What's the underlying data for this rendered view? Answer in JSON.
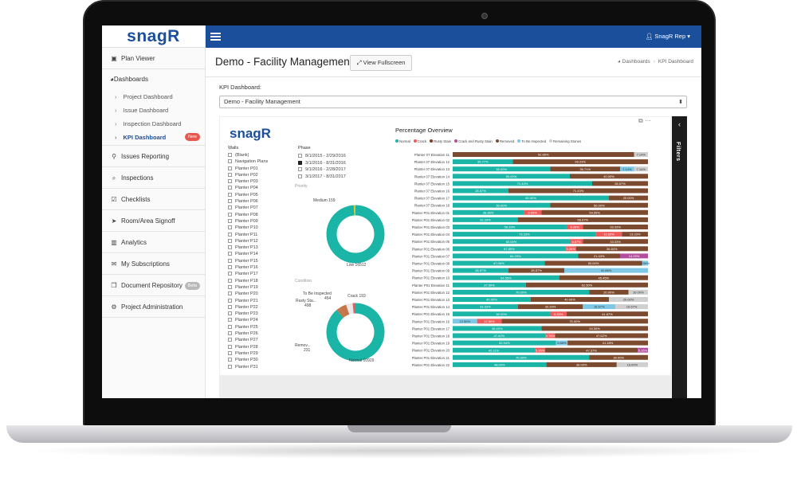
{
  "sidebar": {
    "logo": "snagR",
    "items": [
      {
        "label": "Plan Viewer",
        "icon": "image-icon"
      },
      {
        "label": "Issues Reporting",
        "icon": "map-marker-icon"
      },
      {
        "label": "Inspections",
        "icon": "search-icon"
      },
      {
        "label": "Checklists",
        "icon": "check-square-icon"
      },
      {
        "label": "Room/Area Signoff",
        "icon": "location-arrow-icon"
      },
      {
        "label": "Analytics",
        "icon": "bar-chart-icon"
      },
      {
        "label": "My Subscriptions",
        "icon": "envelope-icon"
      },
      {
        "label": "Document Repository",
        "icon": "copy-icon",
        "badge": "Beta"
      },
      {
        "label": "Project Administration",
        "icon": "cogs-icon"
      }
    ],
    "dashboards": {
      "label": "Dashboards",
      "items": [
        {
          "label": "Project Dashboard"
        },
        {
          "label": "Issue Dashboard"
        },
        {
          "label": "Inspection Dashboard"
        },
        {
          "label": "KPI Dashboard",
          "badge": "New"
        }
      ]
    }
  },
  "topbar": {
    "user": "SnagR Rep"
  },
  "header": {
    "title": "Demo - Facility Management",
    "fullscreen_label": "View Fullscreen",
    "breadcrumb": [
      "Dashboards",
      "KPI Dashboard"
    ]
  },
  "kpi": {
    "label": "KPI Dashboard:",
    "selected": "Demo - Facility Management"
  },
  "filters_label": "Filters",
  "report": {
    "logo": "snagR",
    "walls_heading": "Walls",
    "walls": [
      "(Blank)",
      "Navigation Plans",
      "Planter P01",
      "Planter P02",
      "Planter P03",
      "Planter P04",
      "Planter P05",
      "Planter P06",
      "Planter P07",
      "Planter P08",
      "Planter P09",
      "Planter P10",
      "Planter P11",
      "Planter P12",
      "Planter P13",
      "Planter P14",
      "Planter P15",
      "Planter P16",
      "Planter P17",
      "Planter P18",
      "Planter P19",
      "Planter P20",
      "Planter P21",
      "Planter P22",
      "Planter P23",
      "Planter P24",
      "Planter P25",
      "Planter P26",
      "Planter P27",
      "Planter P28",
      "Planter P29",
      "Planter P30",
      "Planter P31"
    ],
    "phase_heading": "Phase",
    "phases": [
      {
        "label": "8/1/2015 - 2/29/2016",
        "checked": false
      },
      {
        "label": "3/1/2016 - 8/31/2016",
        "checked": true
      },
      {
        "label": "9/1/2016 - 2/28/2017",
        "checked": false
      },
      {
        "label": "3/1/2017 - 8/31/2017",
        "checked": false
      }
    ],
    "priority_heading": "Priority",
    "priority_labels": {
      "medium": "Medium 159",
      "low": "Low 16512"
    },
    "condition_heading": "Condition",
    "condition_labels": {
      "tbi": "To Be Inspected",
      "tbi_val": "454",
      "crack": "Crack 193",
      "rusty": "Rusty Sta...",
      "rusty_val": "498",
      "removed": "Remov...",
      "removed_val": "231",
      "normal": "Normal 10929"
    }
  },
  "colors": {
    "brand": "#1b4f9c",
    "normal": "#1ab5a6",
    "crack": "#ef5a5a",
    "rusty": "#7a3b1f",
    "crack_rusty": "#b24e9e",
    "removed": "#7c4a2e",
    "tbi": "#7ec8e6",
    "remaining": "#cfcfcf",
    "medium": "#e5c31a",
    "cond_removed": "#c6764a"
  },
  "chart_data": {
    "type": "bar",
    "title": "Percentage Overview",
    "legend": [
      "Normal",
      "Crack",
      "Rusty Stain",
      "Crack and Rusty Stain",
      "Removed",
      "To Be Inspected",
      "Remaining Stones"
    ],
    "categories": [
      "Planter 07 Elevation 11",
      "Planter 07 Elevation 12",
      "Planter 07 Elevation 13",
      "Planter 07 Elevation 14",
      "Planter 07 Elevation 15",
      "Planter 07 Elevation 16",
      "Planter 07 Elevation 17",
      "Planter 07 Elevation 18",
      "Planter P01 Elevation 01",
      "Planter P01 Elevation 02",
      "Planter P01 Elevation 03",
      "Planter P01 Elevation 04",
      "Planter P01 Elevation 05",
      "Planter P01 Elevation 06",
      "Planter P01 Elevation 07",
      "Planter P01 Elevation 08",
      "Planter P01 Elevation 09",
      "Planter P01 Elevation 10",
      "Planter P01 Elevation 11",
      "Planter P01 Elevation 12",
      "Planter P01 Elevation 13",
      "Planter P01 Elevation 14",
      "Planter P01 Elevation 15",
      "Planter P01 Elevation 16",
      "Planter P01 Elevation 17",
      "Planter P01 Elevation 18",
      "Planter P01 Elevation 19",
      "Planter P01 Elevation 20",
      "Planter P01 Elevation 21",
      "Planter P01 Elevation 22"
    ],
    "rows": [
      [
        {
          "s": "removed",
          "v": 92.86,
          "t": "92.86%"
        },
        {
          "s": "remaining",
          "v": 7.14,
          "t": "7.14%"
        }
      ],
      [
        {
          "s": "normal",
          "v": 30.77,
          "t": "30.77%"
        },
        {
          "s": "removed",
          "v": 69.23,
          "t": "69.23%"
        }
      ],
      [
        {
          "s": "normal",
          "v": 50.0,
          "t": "50.00%"
        },
        {
          "s": "removed",
          "v": 35.71,
          "t": "35.71%"
        },
        {
          "s": "tbi",
          "v": 7.14,
          "t": "7.14%"
        },
        {
          "s": "remaining",
          "v": 7.14,
          "t": "7.14%"
        }
      ],
      [
        {
          "s": "normal",
          "v": 60.0,
          "t": "60.00%"
        },
        {
          "s": "removed",
          "v": 40.0,
          "t": "40.00%"
        }
      ],
      [
        {
          "s": "normal",
          "v": 71.43,
          "t": "71.43%"
        },
        {
          "s": "removed",
          "v": 28.57,
          "t": "28.57%"
        }
      ],
      [
        {
          "s": "normal",
          "v": 28.57,
          "t": "28.57%"
        },
        {
          "s": "removed",
          "v": 71.43,
          "t": "71.43%"
        }
      ],
      [
        {
          "s": "normal",
          "v": 80.0,
          "t": "80.00%"
        },
        {
          "s": "removed",
          "v": 20.0,
          "t": "20.00%"
        }
      ],
      [
        {
          "s": "normal",
          "v": 50.0,
          "t": "50.00%"
        },
        {
          "s": "removed",
          "v": 50.0,
          "t": "50.00%"
        }
      ],
      [
        {
          "s": "normal",
          "v": 36.36,
          "t": "36.36%"
        },
        {
          "s": "crack",
          "v": 9.09,
          "t": "9.09%"
        },
        {
          "s": "removed",
          "v": 54.55,
          "t": "54.55%"
        }
      ],
      [
        {
          "s": "normal",
          "v": 33.33,
          "t": "33.33%"
        },
        {
          "s": "removed",
          "v": 66.67,
          "t": "66.67%"
        }
      ],
      [
        {
          "s": "normal",
          "v": 58.33,
          "t": "58.33%"
        },
        {
          "s": "crack",
          "v": 8.33,
          "t": "8.33%"
        },
        {
          "s": "removed",
          "v": 33.33,
          "t": "33.33%"
        }
      ],
      [
        {
          "s": "normal",
          "v": 73.33,
          "t": "73.33%"
        },
        {
          "s": "crack",
          "v": 13.33,
          "t": "13.33%"
        },
        {
          "s": "removed",
          "v": 13.33,
          "t": "13.33%"
        }
      ],
      [
        {
          "s": "normal",
          "v": 60.0,
          "t": "60.00%"
        },
        {
          "s": "crack",
          "v": 6.67,
          "t": "6.67%"
        },
        {
          "s": "removed",
          "v": 33.33,
          "t": "33.33%"
        }
      ],
      [
        {
          "s": "normal",
          "v": 57.89,
          "t": "57.89%"
        },
        {
          "s": "crack",
          "v": 5.26,
          "t": "5.26%"
        },
        {
          "s": "removed",
          "v": 36.84,
          "t": "36.84%"
        }
      ],
      [
        {
          "s": "normal",
          "v": 64.29,
          "t": "64.29%"
        },
        {
          "s": "removed",
          "v": 21.43,
          "t": "21.43%"
        },
        {
          "s": "crack_rusty",
          "v": 14.29,
          "t": "14.29%"
        }
      ],
      [
        {
          "s": "normal",
          "v": 47.06,
          "t": "47.06%"
        },
        {
          "s": "removed",
          "v": 50.0,
          "t": "50.00%"
        },
        {
          "s": "tbi",
          "v": 2.94,
          "t": "2.94%"
        }
      ],
      [
        {
          "s": "normal",
          "v": 28.57,
          "t": "28.57%"
        },
        {
          "s": "removed",
          "v": 28.57,
          "t": "28.57%"
        },
        {
          "s": "tbi",
          "v": 42.86,
          "t": "42.86%"
        }
      ],
      [
        {
          "s": "normal",
          "v": 54.55,
          "t": "54.55%"
        },
        {
          "s": "removed",
          "v": 45.45,
          "t": "45.45%"
        }
      ],
      [
        {
          "s": "normal",
          "v": 37.5,
          "t": "37.50%"
        },
        {
          "s": "removed",
          "v": 62.5,
          "t": "62.50%"
        }
      ],
      [
        {
          "s": "normal",
          "v": 70.0,
          "t": "70.00%"
        },
        {
          "s": "removed",
          "v": 20.0,
          "t": "20.00%"
        },
        {
          "s": "remaining",
          "v": 10.0,
          "t": "10.00%"
        }
      ],
      [
        {
          "s": "normal",
          "v": 40.0,
          "t": "40.00%"
        },
        {
          "s": "removed",
          "v": 40.0,
          "t": "40.00%"
        },
        {
          "s": "remaining",
          "v": 20.0,
          "t": "20.00%"
        }
      ],
      [
        {
          "s": "normal",
          "v": 33.33,
          "t": "33.33%"
        },
        {
          "s": "removed",
          "v": 33.33,
          "t": "33.33%"
        },
        {
          "s": "tbi",
          "v": 16.67,
          "t": "16.67%"
        },
        {
          "s": "remaining",
          "v": 16.67,
          "t": "16.67%"
        }
      ],
      [
        {
          "s": "normal",
          "v": 50.0,
          "t": "50.00%"
        },
        {
          "s": "crack",
          "v": 8.33,
          "t": "8.33%"
        },
        {
          "s": "removed",
          "v": 41.67,
          "t": "41.67%"
        }
      ],
      [
        {
          "s": "tbi",
          "v": 12.5,
          "t": "12.50%"
        },
        {
          "s": "crack",
          "v": 12.5,
          "t": "12.50%"
        },
        {
          "s": "removed",
          "v": 75.0,
          "t": "75.00%"
        }
      ],
      [
        {
          "s": "normal",
          "v": 45.45,
          "t": "45.45%"
        },
        {
          "s": "removed",
          "v": 54.55,
          "t": "54.55%"
        }
      ],
      [
        {
          "s": "normal",
          "v": 47.62,
          "t": "47.62%"
        },
        {
          "s": "crack",
          "v": 4.76,
          "t": "4.76%"
        },
        {
          "s": "removed",
          "v": 47.62,
          "t": "47.62%"
        }
      ],
      [
        {
          "s": "normal",
          "v": 52.94,
          "t": "52.94%"
        },
        {
          "s": "tbi",
          "v": 5.88,
          "t": "5.88%"
        },
        {
          "s": "removed",
          "v": 41.18,
          "t": "41.18%"
        }
      ],
      [
        {
          "s": "normal",
          "v": 42.11,
          "t": "42.11%"
        },
        {
          "s": "crack",
          "v": 5.26,
          "t": "5.26%"
        },
        {
          "s": "removed",
          "v": 47.37,
          "t": "47.37%"
        },
        {
          "s": "crack_rusty",
          "v": 5.26,
          "t": "5.26%"
        }
      ],
      [
        {
          "s": "normal",
          "v": 70.0,
          "t": "70.00%"
        },
        {
          "s": "removed",
          "v": 30.0,
          "t": "30.00%"
        }
      ],
      [
        {
          "s": "normal",
          "v": 48.0,
          "t": "48.00%"
        },
        {
          "s": "removed",
          "v": 36.0,
          "t": "36.00%"
        },
        {
          "s": "remaining",
          "v": 16.0,
          "t": "16.00%"
        }
      ]
    ],
    "priority": [
      {
        "name": "Low",
        "value": 16512
      },
      {
        "name": "Medium",
        "value": 159
      }
    ],
    "condition": [
      {
        "name": "Normal",
        "value": 10929
      },
      {
        "name": "Removed",
        "value": 231
      },
      {
        "name": "Rusty Stain",
        "value": 498
      },
      {
        "name": "To Be Inspected",
        "value": 454
      },
      {
        "name": "Crack",
        "value": 193
      }
    ]
  }
}
